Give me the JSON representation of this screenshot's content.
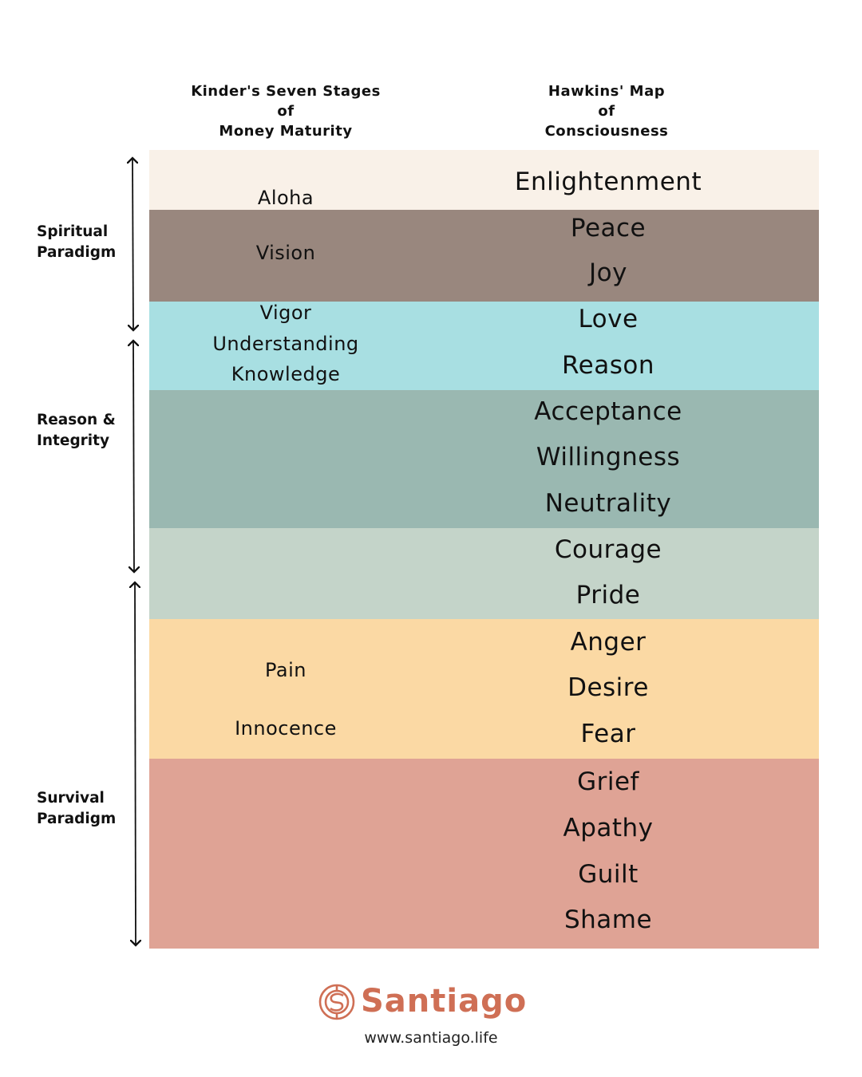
{
  "headers": {
    "kinder": [
      "Kinder's Seven Stages",
      "of",
      "Money Maturity"
    ],
    "hawkins": [
      "Hawkins' Map",
      "of",
      "Consciousness"
    ]
  },
  "paradigms": [
    [
      "Spiritual",
      "Paradigm"
    ],
    [
      "Reason &",
      "Integrity"
    ],
    [
      "Survival",
      "Paradigm"
    ]
  ],
  "bands": [
    {
      "color": "#f9f1e8",
      "hawkins": [
        "Enlightenment"
      ],
      "kinder": [
        "Aloha"
      ]
    },
    {
      "color": "#99877e",
      "hawkins": [
        "Peace",
        "Joy"
      ],
      "kinder": [
        "Vision"
      ]
    },
    {
      "color": "#a8dfe2",
      "hawkins": [
        "Love",
        "Reason"
      ],
      "kinder": [
        "Vigor",
        "Understanding",
        "Knowledge"
      ]
    },
    {
      "color": "#9ab8b1",
      "hawkins": [
        "Acceptance",
        "Willingness",
        "Neutrality"
      ],
      "kinder": []
    },
    {
      "color": "#c4d4c9",
      "hawkins": [
        "Courage",
        "Pride"
      ],
      "kinder": []
    },
    {
      "color": "#fbd9a4",
      "hawkins": [
        "Anger",
        "Desire",
        "Fear"
      ],
      "kinder": [
        "Pain",
        "Innocence"
      ]
    },
    {
      "color": "#dfa395",
      "hawkins": [
        "Grief",
        "Apathy",
        "Guilt",
        "Shame"
      ],
      "kinder": []
    }
  ],
  "brand": {
    "name": "Santiago",
    "url": "www.santiago.life",
    "color": "#cf6f55",
    "icon": "santiago-logo-icon"
  }
}
